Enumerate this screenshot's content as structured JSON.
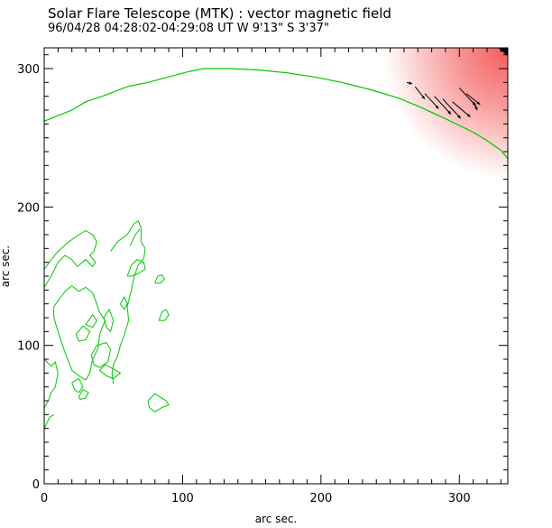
{
  "header": {
    "title": "Solar Flare Telescope (MTK) : vector magnetic field",
    "subtitle": "96/04/28  04:28:02-04:29:08 UT    W 9'13\"  S 3'37\""
  },
  "chart_data": {
    "type": "contour",
    "title": "Solar Flare Telescope (MTK) : vector magnetic field",
    "subtitle": "96/04/28  04:28:02-04:29:08 UT    W 9'13\"  S 3'37\"",
    "xlabel": "arc sec.",
    "ylabel": "arc sec.",
    "xlim": [
      0,
      335
    ],
    "ylim": [
      0,
      315
    ],
    "xticks": [
      0,
      100,
      200,
      300
    ],
    "yticks": [
      0,
      100,
      200,
      300
    ],
    "grid": false,
    "contour_color": "#00c800",
    "limb_contour": [
      [
        0,
        262
      ],
      [
        10,
        266
      ],
      [
        20,
        270
      ],
      [
        30,
        276
      ],
      [
        45,
        281
      ],
      [
        60,
        287
      ],
      [
        75,
        290
      ],
      [
        90,
        294
      ],
      [
        105,
        298
      ],
      [
        115,
        300
      ],
      [
        135,
        300
      ],
      [
        155,
        299
      ],
      [
        175,
        297
      ],
      [
        195,
        294
      ],
      [
        215,
        290
      ],
      [
        235,
        285
      ],
      [
        255,
        279
      ],
      [
        270,
        273
      ],
      [
        285,
        266
      ],
      [
        300,
        259
      ],
      [
        310,
        254
      ],
      [
        320,
        248
      ],
      [
        330,
        241
      ],
      [
        335,
        235
      ]
    ],
    "small_contours": [
      [
        [
          0,
          155
        ],
        [
          6,
          163
        ],
        [
          10,
          168
        ],
        [
          18,
          175
        ],
        [
          25,
          180
        ],
        [
          30,
          183
        ],
        [
          35,
          180
        ],
        [
          38,
          175
        ],
        [
          36,
          168
        ],
        [
          33,
          165
        ],
        [
          37,
          160
        ],
        [
          35,
          157
        ],
        [
          30,
          162
        ],
        [
          24,
          157
        ],
        [
          20,
          162
        ],
        [
          15,
          165
        ],
        [
          10,
          160
        ],
        [
          5,
          150
        ],
        [
          0,
          142
        ]
      ],
      [
        [
          48,
          168
        ],
        [
          53,
          175
        ],
        [
          60,
          180
        ],
        [
          65,
          188
        ],
        [
          68,
          190
        ],
        [
          70,
          185
        ],
        [
          70,
          175
        ],
        [
          73,
          170
        ],
        [
          72,
          163
        ],
        [
          68,
          158
        ],
        [
          65,
          150
        ],
        [
          63,
          140
        ],
        [
          60,
          128
        ],
        [
          61,
          118
        ],
        [
          58,
          108
        ],
        [
          55,
          100
        ],
        [
          53,
          92
        ],
        [
          50,
          86
        ],
        [
          49,
          80
        ],
        [
          50,
          72
        ]
      ],
      [
        [
          62,
          172
        ],
        [
          66,
          180
        ],
        [
          69,
          184
        ]
      ],
      [
        [
          7,
          128
        ],
        [
          12,
          135
        ],
        [
          16,
          140
        ],
        [
          20,
          143
        ],
        [
          25,
          139
        ],
        [
          30,
          142
        ],
        [
          35,
          138
        ],
        [
          38,
          130
        ],
        [
          40,
          124
        ],
        [
          44,
          118
        ],
        [
          40,
          108
        ],
        [
          39,
          98
        ],
        [
          35,
          90
        ],
        [
          33,
          80
        ],
        [
          30,
          75
        ],
        [
          25,
          78
        ],
        [
          20,
          82
        ],
        [
          15,
          95
        ],
        [
          10,
          110
        ],
        [
          7,
          120
        ],
        [
          7,
          128
        ]
      ],
      [
        [
          23,
          108
        ],
        [
          28,
          114
        ],
        [
          33,
          110
        ],
        [
          30,
          104
        ],
        [
          25,
          103
        ],
        [
          23,
          108
        ]
      ],
      [
        [
          30,
          115
        ],
        [
          35,
          122
        ],
        [
          38,
          118
        ],
        [
          35,
          113
        ],
        [
          30,
          115
        ]
      ],
      [
        [
          43,
          120
        ],
        [
          47,
          126
        ],
        [
          50,
          118
        ],
        [
          48,
          110
        ],
        [
          45,
          113
        ],
        [
          43,
          120
        ]
      ],
      [
        [
          34,
          93
        ],
        [
          38,
          100
        ],
        [
          45,
          102
        ],
        [
          48,
          97
        ],
        [
          46,
          88
        ],
        [
          40,
          84
        ],
        [
          36,
          86
        ],
        [
          34,
          93
        ]
      ],
      [
        [
          40,
          82
        ],
        [
          44,
          86
        ],
        [
          50,
          83
        ],
        [
          55,
          80
        ],
        [
          50,
          76
        ],
        [
          45,
          78
        ],
        [
          40,
          82
        ]
      ],
      [
        [
          0,
          90
        ],
        [
          5,
          85
        ],
        [
          8,
          88
        ],
        [
          10,
          80
        ],
        [
          8,
          70
        ],
        [
          5,
          66
        ],
        [
          3,
          60
        ],
        [
          0,
          55
        ]
      ],
      [
        [
          20,
          73
        ],
        [
          25,
          76
        ],
        [
          28,
          70
        ],
        [
          25,
          66
        ],
        [
          22,
          68
        ],
        [
          20,
          73
        ]
      ],
      [
        [
          25,
          63
        ],
        [
          28,
          68
        ],
        [
          32,
          66
        ],
        [
          30,
          62
        ],
        [
          26,
          61
        ],
        [
          25,
          63
        ]
      ],
      [
        [
          0,
          40
        ],
        [
          4,
          48
        ],
        [
          7,
          50
        ]
      ],
      [
        [
          75,
          60
        ],
        [
          80,
          65
        ],
        [
          85,
          62
        ],
        [
          88,
          60
        ],
        [
          90,
          57
        ],
        [
          85,
          55
        ],
        [
          80,
          52
        ],
        [
          76,
          55
        ],
        [
          75,
          60
        ]
      ],
      [
        [
          60,
          150
        ],
        [
          63,
          158
        ],
        [
          67,
          162
        ],
        [
          72,
          160
        ],
        [
          73,
          155
        ],
        [
          68,
          152
        ],
        [
          63,
          150
        ],
        [
          60,
          150
        ]
      ],
      [
        [
          80,
          145
        ],
        [
          82,
          150
        ],
        [
          85,
          151
        ],
        [
          87,
          148
        ],
        [
          84,
          145
        ],
        [
          80,
          145
        ]
      ],
      [
        [
          83,
          118
        ],
        [
          85,
          124
        ],
        [
          88,
          126
        ],
        [
          90,
          122
        ],
        [
          87,
          118
        ],
        [
          83,
          118
        ]
      ],
      [
        [
          55,
          130
        ],
        [
          58,
          135
        ],
        [
          60,
          130
        ],
        [
          58,
          126
        ],
        [
          55,
          130
        ]
      ]
    ],
    "vectors": [
      {
        "x": 262,
        "y": 290,
        "u": 4,
        "v": -1
      },
      {
        "x": 268,
        "y": 287,
        "u": 7,
        "v": -9
      },
      {
        "x": 275,
        "y": 282,
        "u": 10,
        "v": -11
      },
      {
        "x": 282,
        "y": 280,
        "u": 12,
        "v": -13
      },
      {
        "x": 288,
        "y": 278,
        "u": 13,
        "v": -14
      },
      {
        "x": 295,
        "y": 276,
        "u": 13,
        "v": -11
      },
      {
        "x": 300,
        "y": 286,
        "u": 12,
        "v": -13
      },
      {
        "x": 305,
        "y": 282,
        "u": 10,
        "v": -8
      },
      {
        "x": 310,
        "y": 276,
        "u": 3,
        "v": -6
      }
    ],
    "intensity": {
      "color": "#f45a5a",
      "center": [
        335,
        315
      ],
      "extent": [
        90,
        95
      ],
      "dark_corner_color": "#000000"
    }
  }
}
